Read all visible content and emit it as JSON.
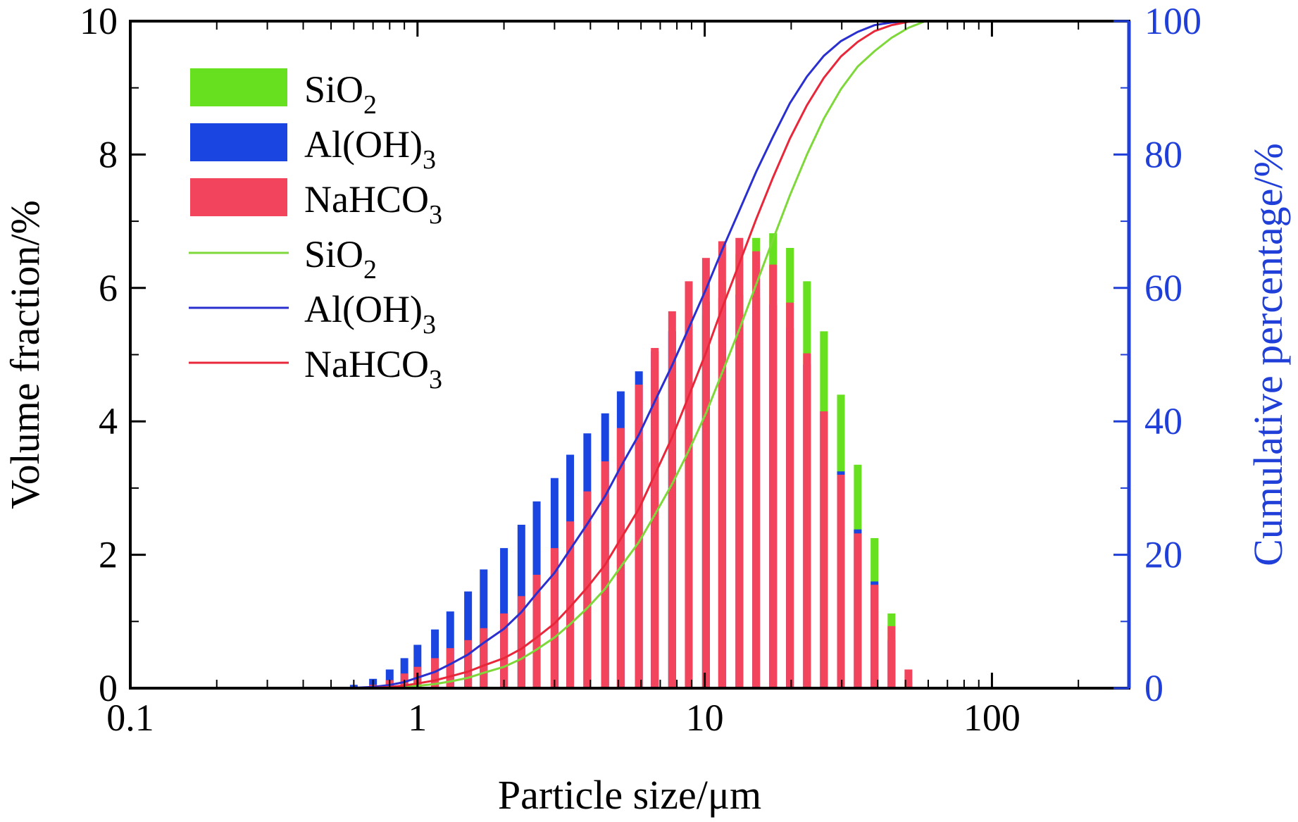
{
  "chart_data": {
    "type": "bar",
    "x_scale": "log",
    "xlim": [
      0.1,
      300
    ],
    "ylim": [
      0,
      10
    ],
    "y2lim": [
      0,
      100
    ],
    "xlabel": "Particle size/μm",
    "ylabel": "Volume fraction/%",
    "y2label": "Cumulative percentage/%",
    "x_ticks": [
      "0.1",
      "1",
      "10",
      "100"
    ],
    "y_ticks": [
      "0",
      "2",
      "4",
      "6",
      "8",
      "10"
    ],
    "y2_ticks": [
      "0",
      "20",
      "40",
      "60",
      "80",
      "100"
    ],
    "legend_position": "top-left",
    "x": [
      0.6,
      0.7,
      0.8,
      0.9,
      1.0,
      1.15,
      1.3,
      1.5,
      1.7,
      2.0,
      2.3,
      2.6,
      3.0,
      3.4,
      3.9,
      4.5,
      5.1,
      5.9,
      6.7,
      7.7,
      8.8,
      10.1,
      11.5,
      13.2,
      15.1,
      17.3,
      19.8,
      22.7,
      26.0,
      29.8,
      34.1,
      39.0,
      44.7,
      51.2,
      58.6
    ],
    "series": [
      {
        "name": "SiO",
        "name_subscript": "2",
        "kind": "bar",
        "color": "#66e01f",
        "values": [
          0.0,
          0.03,
          0.05,
          0.1,
          0.17,
          0.27,
          0.4,
          0.55,
          0.72,
          0.92,
          1.15,
          1.42,
          1.72,
          2.06,
          2.45,
          2.9,
          3.3,
          3.7,
          4.15,
          4.6,
          5.05,
          5.6,
          6.1,
          6.5,
          6.75,
          6.82,
          6.6,
          6.1,
          5.35,
          4.4,
          3.35,
          2.25,
          1.12,
          0.1,
          0.0
        ]
      },
      {
        "name": "Al(OH)",
        "name_subscript": "3",
        "kind": "bar",
        "color": "#1b45e0",
        "values": [
          0.05,
          0.14,
          0.28,
          0.45,
          0.65,
          0.88,
          1.15,
          1.45,
          1.78,
          2.1,
          2.45,
          2.8,
          3.15,
          3.5,
          3.82,
          4.12,
          4.45,
          4.75,
          5.05,
          5.35,
          5.6,
          5.8,
          5.85,
          5.9,
          5.85,
          5.75,
          5.4,
          4.85,
          4.15,
          3.25,
          2.38,
          1.6,
          0.72,
          0.0,
          0.0
        ]
      },
      {
        "name": "NaHCO",
        "name_subscript": "3",
        "kind": "bar",
        "color": "#f2445c",
        "values": [
          0.0,
          0.05,
          0.12,
          0.22,
          0.32,
          0.45,
          0.6,
          0.72,
          0.9,
          1.12,
          1.38,
          1.7,
          2.1,
          2.5,
          2.95,
          3.4,
          3.9,
          4.55,
          5.1,
          5.65,
          6.1,
          6.45,
          6.7,
          6.75,
          6.55,
          6.35,
          5.78,
          5.02,
          4.15,
          3.2,
          2.32,
          1.55,
          0.93,
          0.28,
          0.0
        ]
      },
      {
        "name": "SiO",
        "name_subscript": "2",
        "kind": "cumulative-line",
        "color": "#7ed83a",
        "y_axis": "right",
        "values": [
          0.0,
          0.03,
          0.08,
          0.18,
          0.35,
          0.62,
          1.0,
          1.55,
          2.3,
          3.2,
          4.4,
          5.8,
          7.6,
          9.6,
          12.0,
          14.9,
          18.2,
          21.9,
          26.0,
          30.6,
          35.6,
          41.2,
          47.3,
          53.8,
          60.5,
          67.3,
          73.9,
          80.0,
          85.4,
          89.8,
          93.2,
          95.5,
          97.5,
          99.0,
          100.0
        ]
      },
      {
        "name": "Al(OH)",
        "name_subscript": "3",
        "kind": "cumulative-line",
        "color": "#2a2fd0",
        "y_axis": "right",
        "values": [
          0.05,
          0.19,
          0.47,
          0.92,
          1.57,
          2.45,
          3.6,
          5.05,
          6.8,
          8.9,
          11.4,
          14.2,
          17.3,
          20.8,
          24.6,
          28.8,
          33.2,
          38.0,
          43.0,
          48.4,
          54.0,
          59.8,
          65.7,
          71.6,
          77.4,
          82.7,
          87.7,
          91.7,
          94.8,
          97.0,
          98.4,
          99.4,
          99.8,
          100.0,
          100.0
        ]
      },
      {
        "name": "NaHCO",
        "name_subscript": "3",
        "kind": "cumulative-line",
        "color": "#e8283a",
        "y_axis": "right",
        "values": [
          0.0,
          0.05,
          0.17,
          0.39,
          0.71,
          1.16,
          1.76,
          2.48,
          3.4,
          4.5,
          5.9,
          7.6,
          9.7,
          12.2,
          15.1,
          18.5,
          22.4,
          26.9,
          32.0,
          37.6,
          43.8,
          50.3,
          57.0,
          63.7,
          70.3,
          76.6,
          82.4,
          87.4,
          91.5,
          94.7,
          96.9,
          98.5,
          99.4,
          99.9,
          100.0
        ]
      }
    ]
  }
}
